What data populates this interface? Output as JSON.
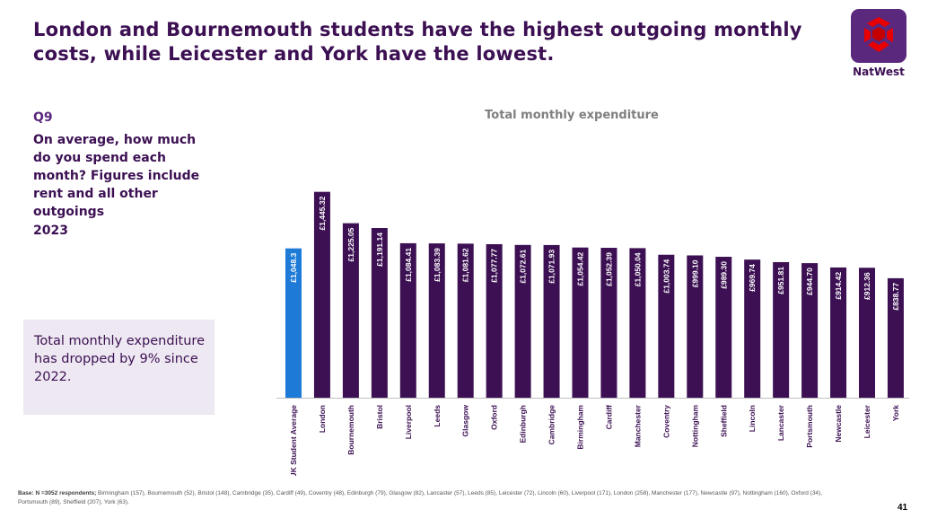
{
  "slide": {
    "title": "London and Bournemouth students have the highest outgoing monthly costs, while Leicester and York have the lowest.",
    "brand": "NatWest",
    "question_label": "Q9",
    "question_text": "On average, how much do you spend each month? Figures include rent and all other outgoings",
    "question_year": "2023",
    "callout": "Total monthly expenditure has dropped by 9% since 2022.",
    "footnote_bold": "Base: N =3052 respondents;",
    "footnote_text": " Birmingham (157),  Bournemouth (52), Bristol (148), Cambridge (35), Cardiff (49), Coventry (48),  Edinburgh (79), Glasgow (82), Lancaster (57), Leeds (85), Leicester (72), Lincoln (60), Liverpool (171), London (258), Manchester (177), Newcastle (97), Nottingham (160), Oxford (34), Portsmouth (89), Sheffield (207), York (63).",
    "page_number": "41"
  },
  "colors": {
    "brand_purple": "#3c1053",
    "bar_purple": "#3c1053",
    "highlight_blue": "#1d7bd7",
    "logo_red": "#e90000"
  },
  "chart_data": {
    "type": "bar",
    "title": "Total monthly expenditure",
    "categories": [
      "UK Student Average",
      "London",
      "Bournemouth",
      "Bristol",
      "Liverpool",
      "Leeds",
      "Glasgow",
      "Oxford",
      "Edinburgh",
      "Cambridge",
      "Birmingham",
      "Cardiff",
      "Manchester",
      "Coventry",
      "Nottingham",
      "Sheffield",
      "Lincoln",
      "Lancaster",
      "Portsmouth",
      "Newcastle",
      "Leicester",
      "York"
    ],
    "values": [
      1048.3,
      1445.32,
      1225.05,
      1191.14,
      1084.41,
      1083.39,
      1081.62,
      1077.77,
      1072.61,
      1071.93,
      1054.42,
      1052.39,
      1050.04,
      1003.74,
      999.1,
      989.3,
      969.74,
      951.81,
      944.7,
      914.42,
      912.36,
      838.77
    ],
    "labels": [
      "£1,048.3",
      "£1,445.32",
      "£1,225.05",
      "£1,191.14",
      "£1,084.41",
      "£1,083.39",
      "£1,081.62",
      "£1,077.77",
      "£1,072.61",
      "£1,071.93",
      "£1,054.42",
      "£1,052.39",
      "£1,050.04",
      "£1,003.74",
      "£999.10",
      "£989.30",
      "£969.74",
      "£951.81",
      "£944.70",
      "£914.42",
      "£912.36",
      "£838.77"
    ],
    "highlight_index": 0,
    "ylim": [
      0,
      1500
    ],
    "xlabel": "",
    "ylabel": ""
  }
}
